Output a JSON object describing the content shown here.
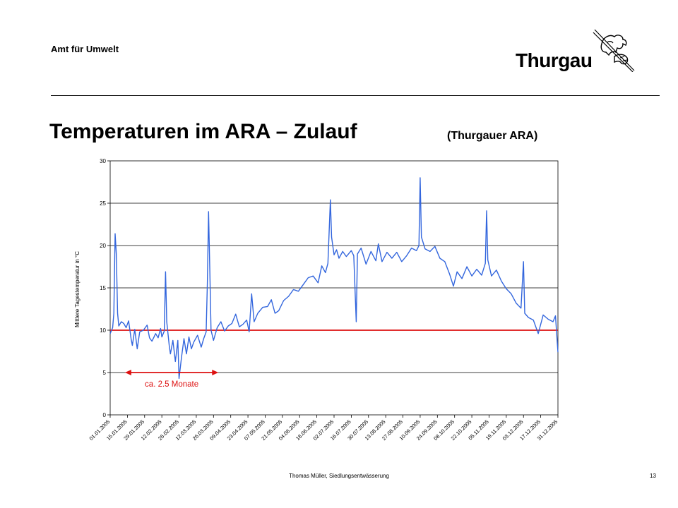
{
  "header": {
    "organization": "Amt für Umwelt",
    "brand": "Thurgau"
  },
  "slide": {
    "title": "Temperaturen im ARA – Zulauf",
    "subtitle": "(Thurgauer ARA)"
  },
  "chart_data": {
    "type": "line",
    "title": "",
    "ylabel": "Mittlere Tagestemperatur in °C",
    "xlabel": "",
    "ylim": [
      0,
      30
    ],
    "y_ticks": [
      0,
      5,
      10,
      15,
      20,
      25,
      30
    ],
    "grid": "horizontal",
    "x_start": "2005-01-01",
    "x_end": "2005-12-31",
    "x_tick_labels": [
      "01.01.2005",
      "15.01.2005",
      "29.01.2005",
      "12.02.2005",
      "26.02.2005",
      "12.03.2005",
      "26.03.2005",
      "09.04.2005",
      "23.04.2005",
      "07.05.2005",
      "21.05.2005",
      "04.06.2005",
      "18.06.2005",
      "02.07.2005",
      "16.07.2005",
      "30.07.2005",
      "13.08.2005",
      "27.08.2005",
      "10.09.2005",
      "24.09.2005",
      "08.10.2005",
      "22.10.2005",
      "05.11.2005",
      "19.11.2005",
      "03.12.2005",
      "17.12.2005",
      "31.12.2005"
    ],
    "series": [
      {
        "color": "#3366dd",
        "points": [
          [
            "2005-01-01",
            9.6
          ],
          [
            "2005-01-03",
            10.3
          ],
          [
            "2005-01-04",
            12.0
          ],
          [
            "2005-01-05",
            21.4
          ],
          [
            "2005-01-06",
            19.0
          ],
          [
            "2005-01-07",
            12.0
          ],
          [
            "2005-01-08",
            10.5
          ],
          [
            "2005-01-10",
            11.0
          ],
          [
            "2005-01-12",
            10.8
          ],
          [
            "2005-01-14",
            10.3
          ],
          [
            "2005-01-16",
            11.1
          ],
          [
            "2005-01-18",
            9.0
          ],
          [
            "2005-01-19",
            8.2
          ],
          [
            "2005-01-21",
            10.1
          ],
          [
            "2005-01-23",
            7.8
          ],
          [
            "2005-01-25",
            9.8
          ],
          [
            "2005-01-28",
            10.0
          ],
          [
            "2005-01-31",
            10.6
          ],
          [
            "2005-02-02",
            9.1
          ],
          [
            "2005-02-04",
            8.7
          ],
          [
            "2005-02-07",
            9.6
          ],
          [
            "2005-02-09",
            9.1
          ],
          [
            "2005-02-11",
            10.2
          ],
          [
            "2005-02-12",
            9.2
          ],
          [
            "2005-02-14",
            9.9
          ],
          [
            "2005-02-15",
            16.9
          ],
          [
            "2005-02-16",
            11.0
          ],
          [
            "2005-02-18",
            8.2
          ],
          [
            "2005-02-19",
            7.2
          ],
          [
            "2005-02-21",
            8.8
          ],
          [
            "2005-02-23",
            6.3
          ],
          [
            "2005-02-25",
            8.8
          ],
          [
            "2005-02-26",
            4.3
          ],
          [
            "2005-02-28",
            6.8
          ],
          [
            "2005-03-02",
            9.0
          ],
          [
            "2005-03-04",
            7.2
          ],
          [
            "2005-03-06",
            9.2
          ],
          [
            "2005-03-08",
            7.8
          ],
          [
            "2005-03-10",
            8.6
          ],
          [
            "2005-03-13",
            9.4
          ],
          [
            "2005-03-16",
            8.0
          ],
          [
            "2005-03-18",
            9.0
          ],
          [
            "2005-03-20",
            9.8
          ],
          [
            "2005-03-21",
            15.5
          ],
          [
            "2005-03-22",
            24.0
          ],
          [
            "2005-03-23",
            17.0
          ],
          [
            "2005-03-24",
            10.0
          ],
          [
            "2005-03-26",
            8.8
          ],
          [
            "2005-03-29",
            10.3
          ],
          [
            "2005-04-01",
            11.0
          ],
          [
            "2005-04-04",
            9.9
          ],
          [
            "2005-04-07",
            10.5
          ],
          [
            "2005-04-10",
            10.8
          ],
          [
            "2005-04-13",
            11.9
          ],
          [
            "2005-04-16",
            10.4
          ],
          [
            "2005-04-19",
            10.7
          ],
          [
            "2005-04-22",
            11.2
          ],
          [
            "2005-04-24",
            9.8
          ],
          [
            "2005-04-26",
            14.3
          ],
          [
            "2005-04-28",
            11.0
          ],
          [
            "2005-05-01",
            12.0
          ],
          [
            "2005-05-05",
            12.7
          ],
          [
            "2005-05-09",
            12.8
          ],
          [
            "2005-05-12",
            13.6
          ],
          [
            "2005-05-15",
            12.0
          ],
          [
            "2005-05-18",
            12.3
          ],
          [
            "2005-05-22",
            13.5
          ],
          [
            "2005-05-26",
            14.0
          ],
          [
            "2005-05-30",
            14.8
          ],
          [
            "2005-06-03",
            14.6
          ],
          [
            "2005-06-07",
            15.4
          ],
          [
            "2005-06-11",
            16.2
          ],
          [
            "2005-06-15",
            16.4
          ],
          [
            "2005-06-19",
            15.6
          ],
          [
            "2005-06-22",
            17.6
          ],
          [
            "2005-06-25",
            16.8
          ],
          [
            "2005-06-27",
            17.9
          ],
          [
            "2005-06-29",
            25.4
          ],
          [
            "2005-06-30",
            21.0
          ],
          [
            "2005-07-02",
            18.9
          ],
          [
            "2005-07-04",
            19.5
          ],
          [
            "2005-07-06",
            18.5
          ],
          [
            "2005-07-09",
            19.3
          ],
          [
            "2005-07-12",
            18.7
          ],
          [
            "2005-07-16",
            19.4
          ],
          [
            "2005-07-18",
            18.8
          ],
          [
            "2005-07-20",
            11.0
          ],
          [
            "2005-07-21",
            19.0
          ],
          [
            "2005-07-24",
            19.7
          ],
          [
            "2005-07-28",
            17.8
          ],
          [
            "2005-08-01",
            19.3
          ],
          [
            "2005-08-05",
            18.2
          ],
          [
            "2005-08-07",
            20.2
          ],
          [
            "2005-08-10",
            18.1
          ],
          [
            "2005-08-14",
            19.2
          ],
          [
            "2005-08-18",
            18.5
          ],
          [
            "2005-08-22",
            19.2
          ],
          [
            "2005-08-26",
            18.1
          ],
          [
            "2005-08-30",
            18.8
          ],
          [
            "2005-09-03",
            19.7
          ],
          [
            "2005-09-07",
            19.4
          ],
          [
            "2005-09-09",
            20.0
          ],
          [
            "2005-09-10",
            28.0
          ],
          [
            "2005-09-11",
            21.0
          ],
          [
            "2005-09-14",
            19.6
          ],
          [
            "2005-09-18",
            19.3
          ],
          [
            "2005-09-22",
            19.9
          ],
          [
            "2005-09-26",
            18.5
          ],
          [
            "2005-09-30",
            18.1
          ],
          [
            "2005-10-04",
            16.6
          ],
          [
            "2005-10-07",
            15.2
          ],
          [
            "2005-10-10",
            16.9
          ],
          [
            "2005-10-14",
            16.1
          ],
          [
            "2005-10-18",
            17.5
          ],
          [
            "2005-10-22",
            16.4
          ],
          [
            "2005-10-26",
            17.2
          ],
          [
            "2005-10-30",
            16.5
          ],
          [
            "2005-11-02",
            17.9
          ],
          [
            "2005-11-03",
            24.1
          ],
          [
            "2005-11-04",
            18.3
          ],
          [
            "2005-11-07",
            16.4
          ],
          [
            "2005-11-11",
            17.1
          ],
          [
            "2005-11-15",
            15.8
          ],
          [
            "2005-11-19",
            14.9
          ],
          [
            "2005-11-23",
            14.3
          ],
          [
            "2005-11-27",
            13.2
          ],
          [
            "2005-12-01",
            12.6
          ],
          [
            "2005-12-03",
            18.1
          ],
          [
            "2005-12-04",
            12.0
          ],
          [
            "2005-12-07",
            11.5
          ],
          [
            "2005-12-11",
            11.2
          ],
          [
            "2005-12-15",
            9.6
          ],
          [
            "2005-12-19",
            11.8
          ],
          [
            "2005-12-23",
            11.3
          ],
          [
            "2005-12-27",
            11.0
          ],
          [
            "2005-12-29",
            11.7
          ],
          [
            "2005-12-31",
            7.4
          ]
        ]
      }
    ],
    "reference_line": {
      "y": 10,
      "color": "#dd1111"
    },
    "annotation": {
      "text": "ca. 2.5 Monate",
      "y": 5,
      "x_from": "2005-01-13",
      "x_to": "2005-03-30",
      "color": "#dd1111"
    }
  },
  "footer": {
    "author": "Thomas Müller, Siedlungsentwässerung",
    "page_number": "13"
  }
}
